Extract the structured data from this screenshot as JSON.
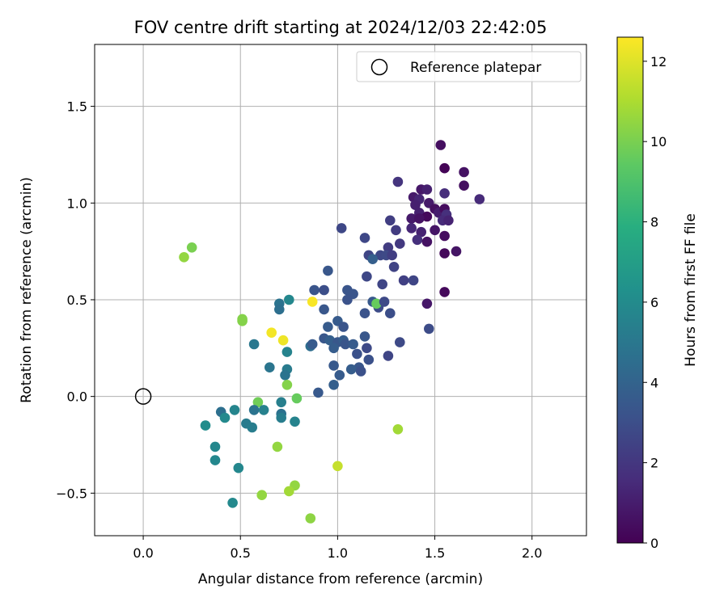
{
  "chart_data": {
    "type": "scatter",
    "title": "FOV centre drift starting at 2024/12/03 22:42:05",
    "xlabel": "Angular distance from reference (arcmin)",
    "ylabel": "Rotation from reference (arcmin)",
    "xlim": [
      -0.25,
      2.28
    ],
    "ylim": [
      -0.72,
      1.82
    ],
    "xticks": [
      0.0,
      0.5,
      1.0,
      1.5,
      2.0
    ],
    "xtick_labels": [
      "0.0",
      "0.5",
      "1.0",
      "1.5",
      "2.0"
    ],
    "yticks": [
      -0.5,
      0.0,
      0.5,
      1.0,
      1.5
    ],
    "ytick_labels": [
      "−0.5",
      "0.0",
      "0.5",
      "1.0",
      "1.5"
    ],
    "grid": true,
    "legend": {
      "position": "top-right",
      "label": "Reference platepar"
    },
    "reference_point": {
      "x": 0.0,
      "y": 0.0
    },
    "colorbar": {
      "label": "Hours from first FF file",
      "range": [
        0,
        12.6
      ],
      "ticks": [
        0,
        2,
        4,
        6,
        8,
        10,
        12
      ],
      "tick_labels": [
        "0",
        "2",
        "4",
        "6",
        "8",
        "10",
        "12"
      ],
      "colormap": "viridis"
    },
    "points": [
      {
        "x": 1.53,
        "y": 1.3,
        "c": 0.5
      },
      {
        "x": 1.55,
        "y": 1.18,
        "c": 0.1
      },
      {
        "x": 1.65,
        "y": 1.16,
        "c": 0.6
      },
      {
        "x": 1.31,
        "y": 1.11,
        "c": 1.9
      },
      {
        "x": 1.43,
        "y": 1.07,
        "c": 0.8
      },
      {
        "x": 1.46,
        "y": 1.07,
        "c": 1.1
      },
      {
        "x": 1.65,
        "y": 1.09,
        "c": 0.5
      },
      {
        "x": 1.39,
        "y": 1.03,
        "c": 0.9
      },
      {
        "x": 1.42,
        "y": 1.02,
        "c": 1.3
      },
      {
        "x": 1.55,
        "y": 1.05,
        "c": 1.6
      },
      {
        "x": 1.73,
        "y": 1.02,
        "c": 1.5
      },
      {
        "x": 1.4,
        "y": 0.99,
        "c": 1.1
      },
      {
        "x": 1.47,
        "y": 1.0,
        "c": 0.9
      },
      {
        "x": 1.5,
        "y": 0.97,
        "c": 0.5
      },
      {
        "x": 1.52,
        "y": 0.95,
        "c": 1.0
      },
      {
        "x": 1.55,
        "y": 0.97,
        "c": 0.4
      },
      {
        "x": 1.56,
        "y": 0.94,
        "c": 1.7
      },
      {
        "x": 1.42,
        "y": 0.95,
        "c": 1.1
      },
      {
        "x": 1.46,
        "y": 0.93,
        "c": 0.3
      },
      {
        "x": 1.38,
        "y": 0.92,
        "c": 0.9
      },
      {
        "x": 1.42,
        "y": 0.92,
        "c": 0.6
      },
      {
        "x": 1.54,
        "y": 0.91,
        "c": 1.5
      },
      {
        "x": 1.57,
        "y": 0.91,
        "c": 1.2
      },
      {
        "x": 1.27,
        "y": 0.91,
        "c": 2.3
      },
      {
        "x": 1.38,
        "y": 0.87,
        "c": 1.4
      },
      {
        "x": 1.3,
        "y": 0.86,
        "c": 2.2
      },
      {
        "x": 1.5,
        "y": 0.86,
        "c": 0.7
      },
      {
        "x": 1.43,
        "y": 0.85,
        "c": 1.2
      },
      {
        "x": 1.55,
        "y": 0.83,
        "c": 0.4
      },
      {
        "x": 1.41,
        "y": 0.81,
        "c": 1.7
      },
      {
        "x": 1.46,
        "y": 0.8,
        "c": 0.6
      },
      {
        "x": 1.32,
        "y": 0.79,
        "c": 2.1
      },
      {
        "x": 1.26,
        "y": 0.77,
        "c": 2.2
      },
      {
        "x": 1.02,
        "y": 0.87,
        "c": 2.7
      },
      {
        "x": 1.14,
        "y": 0.82,
        "c": 2.7
      },
      {
        "x": 1.55,
        "y": 0.74,
        "c": 0.3
      },
      {
        "x": 1.61,
        "y": 0.75,
        "c": 0.7
      },
      {
        "x": 1.16,
        "y": 0.73,
        "c": 2.6
      },
      {
        "x": 1.22,
        "y": 0.73,
        "c": 2.7
      },
      {
        "x": 1.25,
        "y": 0.73,
        "c": 2.8
      },
      {
        "x": 1.28,
        "y": 0.73,
        "c": 2.3
      },
      {
        "x": 1.18,
        "y": 0.71,
        "c": 3.8
      },
      {
        "x": 1.29,
        "y": 0.67,
        "c": 2.5
      },
      {
        "x": 0.95,
        "y": 0.65,
        "c": 3.4
      },
      {
        "x": 1.15,
        "y": 0.62,
        "c": 2.7
      },
      {
        "x": 1.34,
        "y": 0.6,
        "c": 2.4
      },
      {
        "x": 1.39,
        "y": 0.6,
        "c": 2.6
      },
      {
        "x": 1.23,
        "y": 0.58,
        "c": 2.6
      },
      {
        "x": 1.55,
        "y": 0.54,
        "c": 0.3
      },
      {
        "x": 0.88,
        "y": 0.55,
        "c": 3.3
      },
      {
        "x": 0.93,
        "y": 0.55,
        "c": 3.0
      },
      {
        "x": 1.05,
        "y": 0.55,
        "c": 3.3
      },
      {
        "x": 1.08,
        "y": 0.53,
        "c": 3.3
      },
      {
        "x": 1.05,
        "y": 0.5,
        "c": 3.2
      },
      {
        "x": 1.18,
        "y": 0.49,
        "c": 3.5
      },
      {
        "x": 1.21,
        "y": 0.46,
        "c": 2.9
      },
      {
        "x": 1.2,
        "y": 0.48,
        "c": 9.6
      },
      {
        "x": 1.24,
        "y": 0.49,
        "c": 2.8
      },
      {
        "x": 1.46,
        "y": 0.48,
        "c": 0.8
      },
      {
        "x": 0.87,
        "y": 0.49,
        "c": 12.5
      },
      {
        "x": 0.7,
        "y": 0.48,
        "c": 4.8
      },
      {
        "x": 0.75,
        "y": 0.5,
        "c": 5.8
      },
      {
        "x": 0.7,
        "y": 0.45,
        "c": 4.6
      },
      {
        "x": 0.93,
        "y": 0.45,
        "c": 3.4
      },
      {
        "x": 1.27,
        "y": 0.43,
        "c": 3.0
      },
      {
        "x": 1.14,
        "y": 0.43,
        "c": 3.2
      },
      {
        "x": 0.51,
        "y": 0.4,
        "c": 10.2
      },
      {
        "x": 0.51,
        "y": 0.39,
        "c": 10.2
      },
      {
        "x": 1.0,
        "y": 0.39,
        "c": 3.6
      },
      {
        "x": 1.03,
        "y": 0.36,
        "c": 3.3
      },
      {
        "x": 0.95,
        "y": 0.36,
        "c": 3.6
      },
      {
        "x": 1.47,
        "y": 0.35,
        "c": 2.9
      },
      {
        "x": 0.66,
        "y": 0.33,
        "c": 12.4
      },
      {
        "x": 1.14,
        "y": 0.31,
        "c": 3.4
      },
      {
        "x": 0.93,
        "y": 0.3,
        "c": 3.4
      },
      {
        "x": 0.96,
        "y": 0.29,
        "c": 3.8
      },
      {
        "x": 1.0,
        "y": 0.28,
        "c": 3.4
      },
      {
        "x": 1.03,
        "y": 0.29,
        "c": 3.7
      },
      {
        "x": 1.04,
        "y": 0.27,
        "c": 3.3
      },
      {
        "x": 0.72,
        "y": 0.29,
        "c": 12.3
      },
      {
        "x": 0.86,
        "y": 0.26,
        "c": 4.5
      },
      {
        "x": 0.87,
        "y": 0.27,
        "c": 3.6
      },
      {
        "x": 0.57,
        "y": 0.27,
        "c": 5.0
      },
      {
        "x": 1.08,
        "y": 0.27,
        "c": 3.6
      },
      {
        "x": 0.98,
        "y": 0.25,
        "c": 3.7
      },
      {
        "x": 1.32,
        "y": 0.28,
        "c": 2.8
      },
      {
        "x": 1.15,
        "y": 0.25,
        "c": 2.8
      },
      {
        "x": 0.74,
        "y": 0.23,
        "c": 5.6
      },
      {
        "x": 1.1,
        "y": 0.22,
        "c": 3.1
      },
      {
        "x": 1.26,
        "y": 0.21,
        "c": 2.6
      },
      {
        "x": 1.16,
        "y": 0.19,
        "c": 3.1
      },
      {
        "x": 0.98,
        "y": 0.16,
        "c": 3.5
      },
      {
        "x": 0.65,
        "y": 0.15,
        "c": 4.9
      },
      {
        "x": 1.11,
        "y": 0.15,
        "c": 3.4
      },
      {
        "x": 1.07,
        "y": 0.14,
        "c": 3.7
      },
      {
        "x": 0.74,
        "y": 0.14,
        "c": 5.2
      },
      {
        "x": 1.12,
        "y": 0.13,
        "c": 3.1
      },
      {
        "x": 0.73,
        "y": 0.11,
        "c": 4.8
      },
      {
        "x": 1.01,
        "y": 0.11,
        "c": 3.6
      },
      {
        "x": 0.98,
        "y": 0.06,
        "c": 3.8
      },
      {
        "x": 0.74,
        "y": 0.06,
        "c": 10.2
      },
      {
        "x": 0.9,
        "y": 0.02,
        "c": 3.5
      },
      {
        "x": 0.79,
        "y": -0.01,
        "c": 9.6
      },
      {
        "x": 0.59,
        "y": -0.03,
        "c": 9.8
      },
      {
        "x": 0.71,
        "y": -0.03,
        "c": 5.4
      },
      {
        "x": 0.4,
        "y": -0.08,
        "c": 4.6
      },
      {
        "x": 0.47,
        "y": -0.07,
        "c": 5.7
      },
      {
        "x": 0.57,
        "y": -0.07,
        "c": 4.8
      },
      {
        "x": 0.62,
        "y": -0.07,
        "c": 5.5
      },
      {
        "x": 0.71,
        "y": -0.09,
        "c": 4.7
      },
      {
        "x": 0.42,
        "y": -0.11,
        "c": 5.9
      },
      {
        "x": 0.71,
        "y": -0.11,
        "c": 5.3
      },
      {
        "x": 0.78,
        "y": -0.13,
        "c": 5.6
      },
      {
        "x": 0.53,
        "y": -0.14,
        "c": 5.2
      },
      {
        "x": 0.32,
        "y": -0.15,
        "c": 6.1
      },
      {
        "x": 0.56,
        "y": -0.16,
        "c": 5.3
      },
      {
        "x": 1.31,
        "y": -0.17,
        "c": 10.8
      },
      {
        "x": 0.37,
        "y": -0.26,
        "c": 5.8
      },
      {
        "x": 0.69,
        "y": -0.26,
        "c": 10.5
      },
      {
        "x": 0.37,
        "y": -0.33,
        "c": 5.8
      },
      {
        "x": 1.0,
        "y": -0.36,
        "c": 11.5
      },
      {
        "x": 0.49,
        "y": -0.37,
        "c": 5.8
      },
      {
        "x": 0.78,
        "y": -0.46,
        "c": 10.5
      },
      {
        "x": 0.75,
        "y": -0.49,
        "c": 10.8
      },
      {
        "x": 0.61,
        "y": -0.51,
        "c": 10.5
      },
      {
        "x": 0.46,
        "y": -0.55,
        "c": 5.9
      },
      {
        "x": 0.86,
        "y": -0.63,
        "c": 10.4
      },
      {
        "x": 0.21,
        "y": 0.72,
        "c": 10.5
      },
      {
        "x": 0.25,
        "y": 0.77,
        "c": 10.0
      }
    ]
  }
}
